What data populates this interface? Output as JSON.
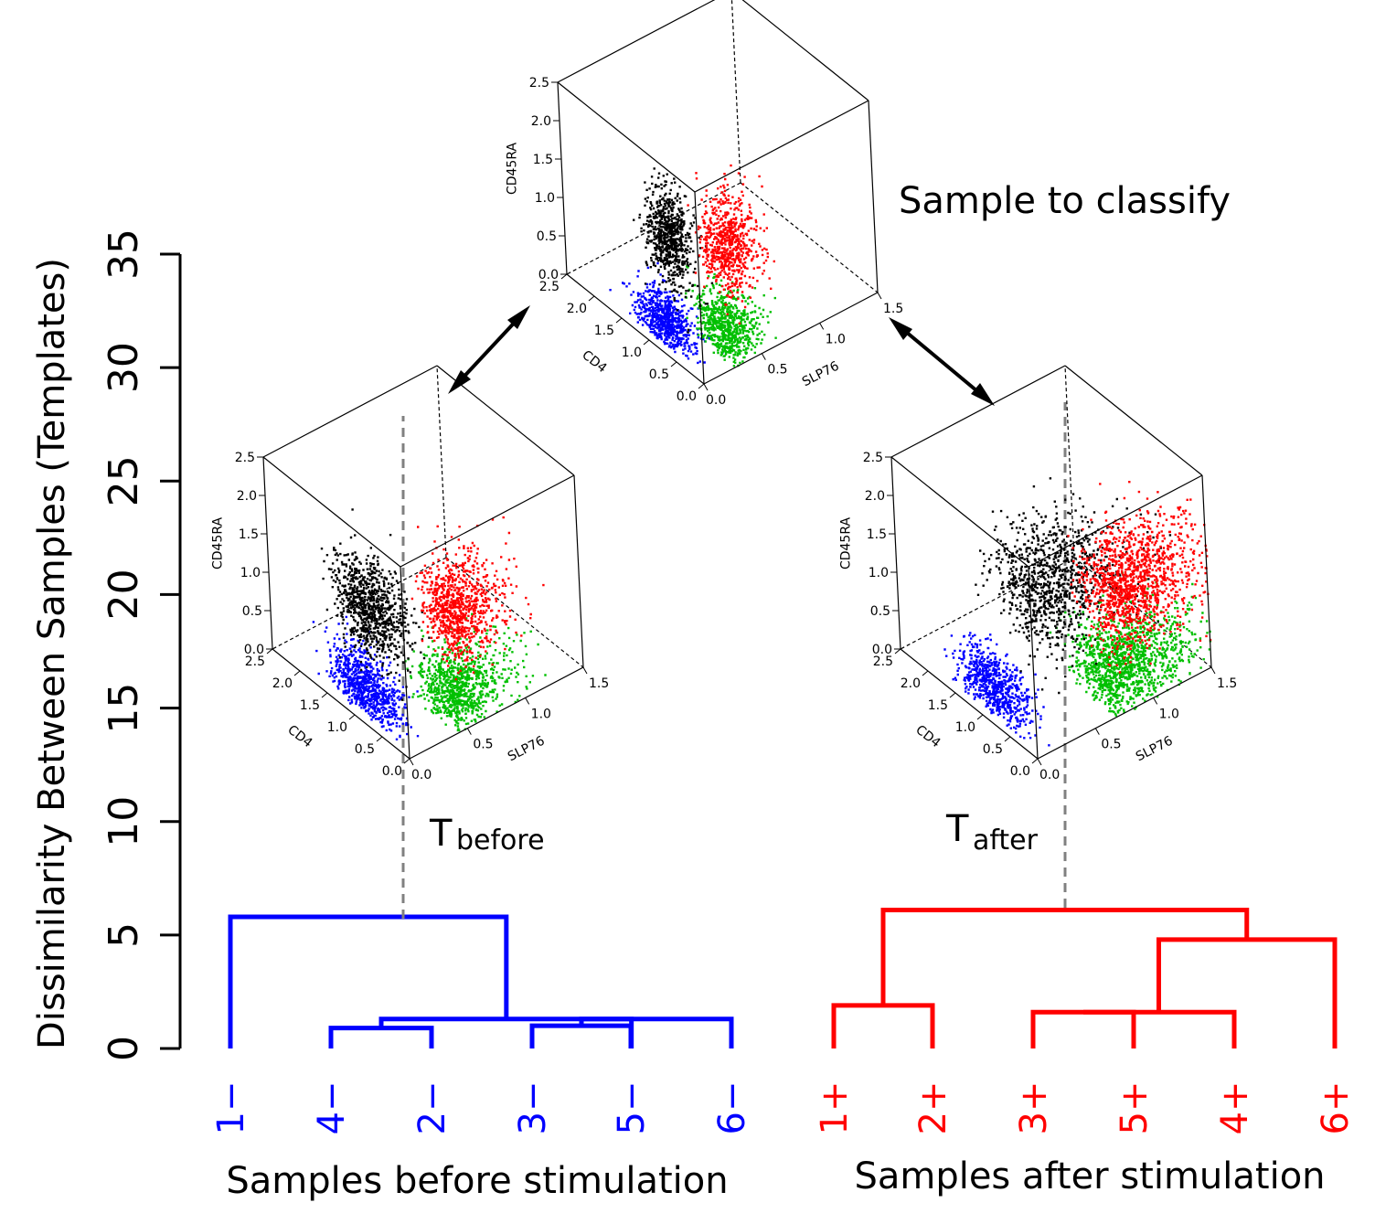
{
  "chart_data": {
    "type": "dendrogram",
    "ylabel": "Dissimilarity Between Samples (Templates)",
    "ylim": [
      0,
      35
    ],
    "yticks": [
      0,
      5,
      10,
      15,
      20,
      25,
      30,
      35
    ],
    "groups": [
      {
        "name": "Samples before stimulation",
        "color": "#0000ff",
        "leaves": [
          "1−",
          "4−",
          "2−",
          "3−",
          "5−",
          "6−"
        ],
        "merges": [
          {
            "left": [
              1
            ],
            "right": [
              2
            ],
            "height": 0.9
          },
          {
            "left": [
              3
            ],
            "right": [
              4
            ],
            "height": 1.0
          },
          {
            "left": [
              1,
              2
            ],
            "right": [
              3,
              4,
              5
            ],
            "height": 1.3
          },
          {
            "left": [
              3,
              4
            ],
            "right": [
              5
            ],
            "height": 1.3
          },
          {
            "left": [
              0
            ],
            "right": [
              1,
              2,
              3,
              4,
              5
            ],
            "height": 5.8
          }
        ],
        "template_label": "T",
        "template_subscript": "before"
      },
      {
        "name": "Samples after stimulation",
        "color": "#ff0000",
        "leaves": [
          "1+",
          "2+",
          "3+",
          "5+",
          "4+",
          "6+"
        ],
        "merges": [
          {
            "left": [
              0
            ],
            "right": [
              1
            ],
            "height": 1.9
          },
          {
            "left": [
              2
            ],
            "right": [
              3
            ],
            "height": 1.6
          },
          {
            "left": [
              2,
              3
            ],
            "right": [
              4
            ],
            "height": 1.6
          },
          {
            "left": [
              2,
              3,
              4
            ],
            "right": [
              5
            ],
            "height": 4.8
          },
          {
            "left": [
              0,
              1
            ],
            "right": [
              2,
              3,
              4,
              5
            ],
            "height": 6.1
          }
        ],
        "template_label": "T",
        "template_subscript": "after"
      }
    ],
    "panels": [
      {
        "id": "sample",
        "caption": "Sample to classify",
        "axes": {
          "z": "CD45RA",
          "x": "CD4",
          "y": "SLP76"
        },
        "z_ticks": [
          "0.0",
          "0.5",
          "1.0",
          "1.5",
          "2.0",
          "2.5"
        ],
        "x_ticks": [
          "0.0",
          "0.5",
          "1.0",
          "1.5",
          "2.0",
          "2.5"
        ],
        "y_ticks": [
          "0.0",
          "0.5",
          "1.0",
          "1.5"
        ]
      },
      {
        "id": "before",
        "caption": "",
        "axes": {
          "z": "CD45RA",
          "x": "CD4",
          "y": "SLP76"
        },
        "z_ticks": [
          "0.0",
          "0.5",
          "1.0",
          "1.5",
          "2.0",
          "2.5"
        ],
        "x_ticks": [
          "0.0",
          "0.5",
          "1.0",
          "1.5",
          "2.0",
          "2.5"
        ],
        "y_ticks": [
          "0.0",
          "0.5",
          "1.0",
          "1.5"
        ]
      },
      {
        "id": "after",
        "caption": "",
        "axes": {
          "z": "CD45RA",
          "x": "CD4",
          "y": "SLP76"
        },
        "z_ticks": [
          "0.0",
          "0.5",
          "1.0",
          "1.5",
          "2.0",
          "2.5"
        ],
        "x_ticks": [
          "0.0",
          "0.5",
          "1.0",
          "1.5",
          "2.0",
          "2.5"
        ],
        "y_ticks": [
          "0.0",
          "0.5",
          "1.0",
          "1.5"
        ]
      }
    ],
    "cluster_colors": {
      "black": "#000000",
      "red": "#ff0000",
      "blue": "#0000ff",
      "green": "#00c000"
    }
  }
}
